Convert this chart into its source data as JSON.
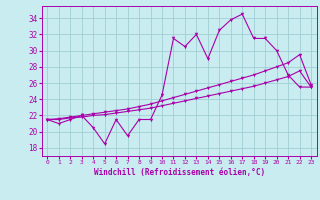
{
  "xlabel": "Windchill (Refroidissement éolien,°C)",
  "bg_color": "#c8ecef",
  "grid_color": "#a0cdd4",
  "line_color": "#aa00aa",
  "xlim": [
    -0.5,
    23.5
  ],
  "ylim": [
    17.0,
    35.5
  ],
  "yticks": [
    18,
    20,
    22,
    24,
    26,
    28,
    30,
    32,
    34
  ],
  "xticks": [
    0,
    1,
    2,
    3,
    4,
    5,
    6,
    7,
    8,
    9,
    10,
    11,
    12,
    13,
    14,
    15,
    16,
    17,
    18,
    19,
    20,
    21,
    22,
    23
  ],
  "x": [
    0,
    1,
    2,
    3,
    4,
    5,
    6,
    7,
    8,
    9,
    10,
    11,
    12,
    13,
    14,
    15,
    16,
    17,
    18,
    19,
    20,
    21,
    22,
    23
  ],
  "y_main": [
    21.5,
    21.0,
    21.5,
    22.0,
    20.5,
    18.5,
    21.5,
    19.5,
    21.5,
    21.5,
    24.5,
    31.5,
    30.5,
    32.0,
    29.0,
    32.5,
    33.8,
    34.5,
    31.5,
    31.5,
    30.0,
    27.0,
    25.5,
    25.5
  ],
  "y_upper": [
    21.5,
    21.6,
    21.8,
    22.0,
    22.2,
    22.4,
    22.6,
    22.8,
    23.1,
    23.4,
    23.8,
    24.2,
    24.6,
    25.0,
    25.4,
    25.8,
    26.2,
    26.6,
    27.0,
    27.5,
    28.0,
    28.5,
    29.5,
    25.8
  ],
  "y_lower": [
    21.5,
    21.5,
    21.7,
    21.8,
    22.0,
    22.1,
    22.3,
    22.5,
    22.7,
    22.9,
    23.2,
    23.5,
    23.8,
    24.1,
    24.4,
    24.7,
    25.0,
    25.3,
    25.6,
    26.0,
    26.4,
    26.8,
    27.5,
    25.5
  ]
}
